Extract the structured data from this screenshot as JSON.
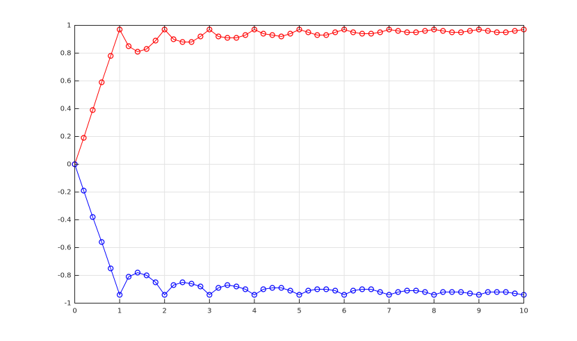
{
  "chart_data": {
    "type": "line",
    "x": [
      0,
      0.2,
      0.4,
      0.6,
      0.8,
      1,
      1.2,
      1.4,
      1.6,
      1.8,
      2,
      2.2,
      2.4,
      2.6,
      2.8,
      3,
      3.2,
      3.4,
      3.6,
      3.8,
      4,
      4.2,
      4.4,
      4.6,
      4.8,
      5,
      5.2,
      5.4,
      5.6,
      5.8,
      6,
      6.2,
      6.4,
      6.6,
      6.8,
      7,
      7.2,
      7.4,
      7.6,
      7.8,
      8,
      8.2,
      8.4,
      8.6,
      8.8,
      9,
      9.2,
      9.4,
      9.6,
      9.8,
      10
    ],
    "series": [
      {
        "color": "#ff0000",
        "values": [
          0,
          0.19,
          0.39,
          0.59,
          0.78,
          0.97,
          0.85,
          0.81,
          0.83,
          0.89,
          0.97,
          0.9,
          0.88,
          0.88,
          0.92,
          0.97,
          0.92,
          0.91,
          0.91,
          0.93,
          0.97,
          0.94,
          0.93,
          0.92,
          0.94,
          0.97,
          0.95,
          0.93,
          0.93,
          0.95,
          0.97,
          0.95,
          0.94,
          0.94,
          0.95,
          0.97,
          0.96,
          0.95,
          0.95,
          0.96,
          0.97,
          0.96,
          0.95,
          0.95,
          0.96,
          0.97,
          0.96,
          0.95,
          0.95,
          0.96,
          0.97
        ]
      },
      {
        "color": "#0000ff",
        "values": [
          0,
          -0.19,
          -0.38,
          -0.56,
          -0.75,
          -0.94,
          -0.81,
          -0.78,
          -0.8,
          -0.85,
          -0.94,
          -0.87,
          -0.85,
          -0.86,
          -0.88,
          -0.94,
          -0.89,
          -0.87,
          -0.88,
          -0.9,
          -0.94,
          -0.9,
          -0.89,
          -0.89,
          -0.91,
          -0.94,
          -0.91,
          -0.9,
          -0.9,
          -0.91,
          -0.94,
          -0.91,
          -0.9,
          -0.9,
          -0.92,
          -0.94,
          -0.92,
          -0.91,
          -0.91,
          -0.92,
          -0.94,
          -0.92,
          -0.92,
          -0.92,
          -0.93,
          -0.94,
          -0.92,
          -0.92,
          -0.92,
          -0.93,
          -0.94
        ]
      }
    ],
    "xlim": [
      0,
      10
    ],
    "ylim": [
      -1,
      1
    ],
    "xticks": [
      0,
      1,
      2,
      3,
      4,
      5,
      6,
      7,
      8,
      9,
      10
    ],
    "yticks": [
      -1,
      -0.8,
      -0.6,
      -0.4,
      -0.2,
      0,
      0.2,
      0.4,
      0.6,
      0.8,
      1
    ],
    "grid": true,
    "marker": "circle"
  }
}
